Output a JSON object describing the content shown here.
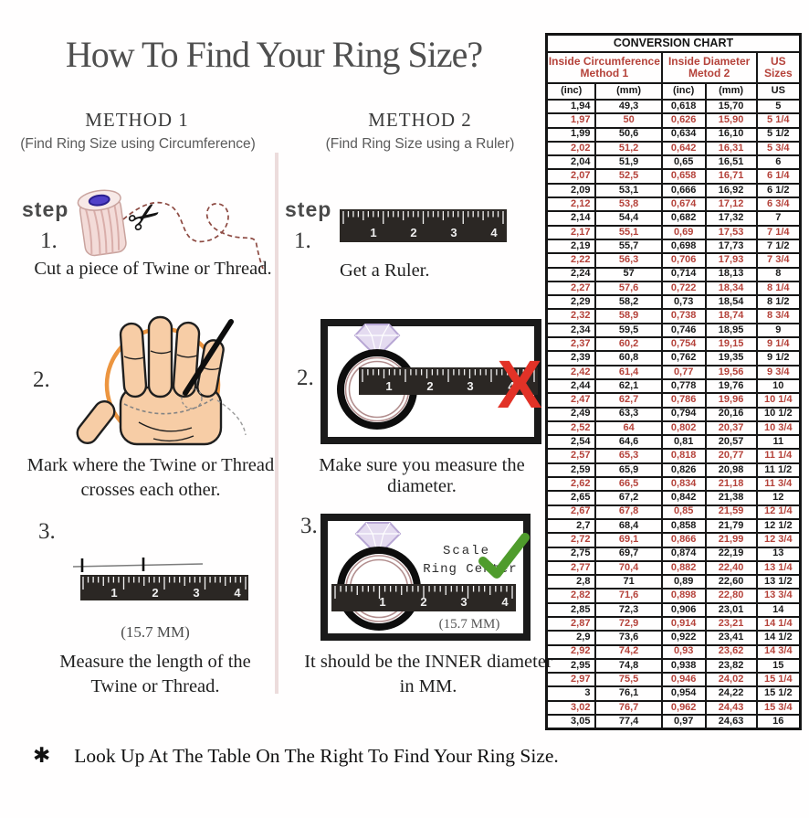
{
  "page": {
    "title": "How To Find Your Ring Size?",
    "footer_star": "✱",
    "footer_text": "Look Up  At The Table On The Right To Find Your Ring Size."
  },
  "method1": {
    "heading": "METHOD 1",
    "subheading": "(Find Ring Size using Circumference)",
    "step_label": "step",
    "steps": [
      {
        "num": "1.",
        "text": "Cut a piece of  Twine or Thread."
      },
      {
        "num": "2.",
        "line1": "Mark where the Twine or Thread",
        "line2": "crosses each other."
      },
      {
        "num": "3.",
        "note": "(15.7 MM)",
        "line1": "Measure the length of the",
        "line2": "Twine or Thread."
      }
    ]
  },
  "method2": {
    "heading": "METHOD 2",
    "subheading": "(Find Ring Size using a Ruler)",
    "step_label": "step",
    "steps": [
      {
        "num": "1.",
        "text": "Get a Ruler."
      },
      {
        "num": "2.",
        "text": "Make sure you measure the diameter."
      },
      {
        "num": "3.",
        "scale_line1": "Scale",
        "scale_line2": "Ring Center",
        "note": "(15.7 MM)",
        "line1": "It should be the INNER diameter",
        "line2": "in MM."
      }
    ]
  },
  "icons": {
    "x_mark": "X",
    "scissors": "✂"
  },
  "ruler_numbers": [
    "1",
    "2",
    "3",
    "4"
  ],
  "colors": {
    "table_red": "#b5423a",
    "table_black": "#1b1b1b",
    "check_green": "#4f9c2c",
    "x_red": "#e23227"
  },
  "conversion_chart": {
    "title": "CONVERSION CHART",
    "group_headers": [
      {
        "line1": "Inside Circumference",
        "line2": "Method 1"
      },
      {
        "line1": "Inside Diameter",
        "line2": "Metod 2"
      },
      {
        "label": "US Sizes"
      }
    ],
    "sub_headers": [
      "(inc)",
      "(mm)",
      "(inc)",
      "(mm)",
      "US"
    ],
    "rows": [
      [
        "1,94",
        "49,3",
        "0,618",
        "15,70",
        "5"
      ],
      [
        "1,97",
        "50",
        "0,626",
        "15,90",
        "5 1/4"
      ],
      [
        "1,99",
        "50,6",
        "0,634",
        "16,10",
        "5 1/2"
      ],
      [
        "2,02",
        "51,2",
        "0,642",
        "16,31",
        "5 3/4"
      ],
      [
        "2,04",
        "51,9",
        "0,65",
        "16,51",
        "6"
      ],
      [
        "2,07",
        "52,5",
        "0,658",
        "16,71",
        "6 1/4"
      ],
      [
        "2,09",
        "53,1",
        "0,666",
        "16,92",
        "6 1/2"
      ],
      [
        "2,12",
        "53,8",
        "0,674",
        "17,12",
        "6 3/4"
      ],
      [
        "2,14",
        "54,4",
        "0,682",
        "17,32",
        "7"
      ],
      [
        "2,17",
        "55,1",
        "0,69",
        "17,53",
        "7 1/4"
      ],
      [
        "2,19",
        "55,7",
        "0,698",
        "17,73",
        "7 1/2"
      ],
      [
        "2,22",
        "56,3",
        "0,706",
        "17,93",
        "7 3/4"
      ],
      [
        "2,24",
        "57",
        "0,714",
        "18,13",
        "8"
      ],
      [
        "2,27",
        "57,6",
        "0,722",
        "18,34",
        "8 1/4"
      ],
      [
        "2,29",
        "58,2",
        "0,73",
        "18,54",
        "8 1/2"
      ],
      [
        "2,32",
        "58,9",
        "0,738",
        "18,74",
        "8 3/4"
      ],
      [
        "2,34",
        "59,5",
        "0,746",
        "18,95",
        "9"
      ],
      [
        "2,37",
        "60,2",
        "0,754",
        "19,15",
        "9 1/4"
      ],
      [
        "2,39",
        "60,8",
        "0,762",
        "19,35",
        "9 1/2"
      ],
      [
        "2,42",
        "61,4",
        "0,77",
        "19,56",
        "9 3/4"
      ],
      [
        "2,44",
        "62,1",
        "0,778",
        "19,76",
        "10"
      ],
      [
        "2,47",
        "62,7",
        "0,786",
        "19,96",
        "10 1/4"
      ],
      [
        "2,49",
        "63,3",
        "0,794",
        "20,16",
        "10 1/2"
      ],
      [
        "2,52",
        "64",
        "0,802",
        "20,37",
        "10 3/4"
      ],
      [
        "2,54",
        "64,6",
        "0,81",
        "20,57",
        "11"
      ],
      [
        "2,57",
        "65,3",
        "0,818",
        "20,77",
        "11 1/4"
      ],
      [
        "2,59",
        "65,9",
        "0,826",
        "20,98",
        "11 1/2"
      ],
      [
        "2,62",
        "66,5",
        "0,834",
        "21,18",
        "11 3/4"
      ],
      [
        "2,65",
        "67,2",
        "0,842",
        "21,38",
        "12"
      ],
      [
        "2,67",
        "67,8",
        "0,85",
        "21,59",
        "12 1/4"
      ],
      [
        "2,7",
        "68,4",
        "0,858",
        "21,79",
        "12 1/2"
      ],
      [
        "2,72",
        "69,1",
        "0,866",
        "21,99",
        "12 3/4"
      ],
      [
        "2,75",
        "69,7",
        "0,874",
        "22,19",
        "13"
      ],
      [
        "2,77",
        "70,4",
        "0,882",
        "22,40",
        "13 1/4"
      ],
      [
        "2,8",
        "71",
        "0,89",
        "22,60",
        "13 1/2"
      ],
      [
        "2,82",
        "71,6",
        "0,898",
        "22,80",
        "13 3/4"
      ],
      [
        "2,85",
        "72,3",
        "0,906",
        "23,01",
        "14"
      ],
      [
        "2,87",
        "72,9",
        "0,914",
        "23,21",
        "14 1/4"
      ],
      [
        "2,9",
        "73,6",
        "0,922",
        "23,41",
        "14 1/2"
      ],
      [
        "2,92",
        "74,2",
        "0,93",
        "23,62",
        "14 3/4"
      ],
      [
        "2,95",
        "74,8",
        "0,938",
        "23,82",
        "15"
      ],
      [
        "2,97",
        "75,5",
        "0,946",
        "24,02",
        "15 1/4"
      ],
      [
        "3",
        "76,1",
        "0,954",
        "24,22",
        "15 1/2"
      ],
      [
        "3,02",
        "76,7",
        "0,962",
        "24,43",
        "15 3/4"
      ],
      [
        "3,05",
        "77,4",
        "0,97",
        "24,63",
        "16"
      ]
    ]
  }
}
